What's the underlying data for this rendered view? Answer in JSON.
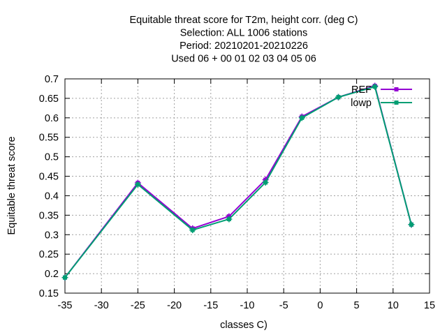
{
  "chart_data": {
    "type": "line",
    "title_lines": [
      "Equitable threat score  for T2m, height corr. (deg C)",
      "Selection: ALL   1006 stations",
      "Period: 20210201-20210226",
      "Used  06  + 00 01 02 03 04 05 06"
    ],
    "xlabel": "classes C)",
    "ylabel": "Equitable threat score",
    "xlim": [
      -35,
      15
    ],
    "ylim": [
      0.15,
      0.7
    ],
    "x_ticks": [
      -35,
      -30,
      -25,
      -20,
      -15,
      -10,
      -5,
      0,
      5,
      10,
      15
    ],
    "y_ticks": [
      0.15,
      0.2,
      0.25,
      0.3,
      0.35,
      0.4,
      0.45,
      0.5,
      0.55,
      0.6,
      0.65,
      0.7
    ],
    "grid": true,
    "legend_position": "top-right",
    "series": [
      {
        "name": "REF",
        "color": "#9400d3",
        "x": [
          -35,
          -25,
          -17.5,
          -12.5,
          -7.5,
          -2.5,
          2.5,
          7.5,
          12.5
        ],
        "y": [
          0.19,
          0.433,
          0.316,
          0.347,
          0.441,
          0.603,
          0.653,
          0.682,
          0.326
        ]
      },
      {
        "name": "lowp",
        "color": "#009e73",
        "x": [
          -35,
          -25,
          -17.5,
          -12.5,
          -7.5,
          -2.5,
          2.5,
          7.5,
          12.5
        ],
        "y": [
          0.19,
          0.429,
          0.312,
          0.34,
          0.434,
          0.6,
          0.653,
          0.68,
          0.326
        ]
      }
    ]
  }
}
